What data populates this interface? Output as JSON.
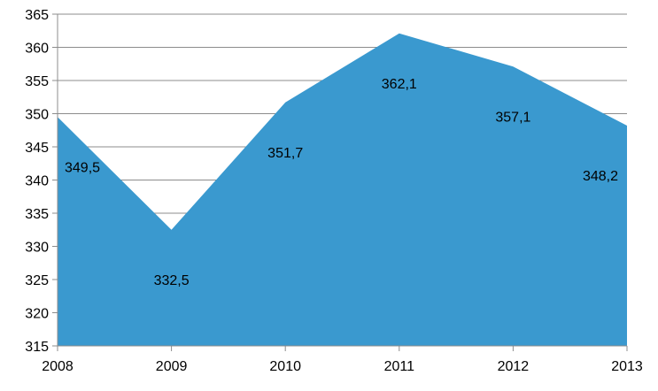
{
  "chart_data": {
    "type": "area",
    "x": [
      "2008",
      "2009",
      "2010",
      "2011",
      "2012",
      "2013"
    ],
    "series": [
      {
        "values": [
          349.5,
          332.5,
          351.7,
          362.1,
          357.1,
          348.2
        ],
        "labels": [
          "349,5",
          "332,5",
          "351,7",
          "362,1",
          "357,1",
          "348,2"
        ],
        "color": "#3a99cf"
      }
    ],
    "ylim": [
      315,
      365
    ],
    "yticks": [
      315,
      320,
      325,
      330,
      335,
      340,
      345,
      350,
      355,
      360,
      365
    ],
    "grid": true,
    "legend": "none",
    "title": "",
    "xlabel": "",
    "ylabel": ""
  }
}
